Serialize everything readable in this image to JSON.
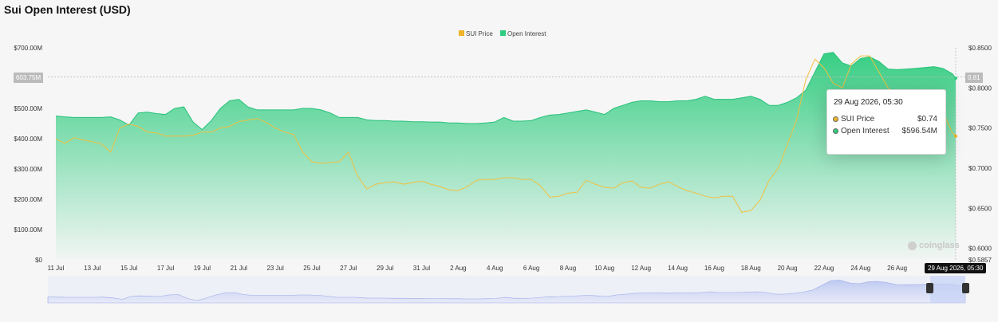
{
  "title": "Sui Open Interest (USD)",
  "legend": [
    {
      "name": "SUI Price",
      "color": "#f0b429"
    },
    {
      "name": "Open Interest",
      "color": "#2ecc7e"
    }
  ],
  "crosshair": {
    "left_label": "603.75M",
    "right_label": "0.81",
    "x_label": "29 Aug 2026, 05:30"
  },
  "tooltip": {
    "date": "29 Aug 2026, 05:30",
    "rows": [
      {
        "label": "SUI Price",
        "value": "$0.74",
        "color": "#f0b429"
      },
      {
        "label": "Open Interest",
        "value": "$596.54M",
        "color": "#2ecc7e"
      }
    ]
  },
  "watermark": "coinglass",
  "chart_data": {
    "type": "area",
    "title": "Sui Open Interest (USD)",
    "x_ticks": [
      "11 Jul",
      "13 Jul",
      "15 Jul",
      "17 Jul",
      "19 Jul",
      "21 Jul",
      "23 Jul",
      "25 Jul",
      "27 Jul",
      "29 Jul",
      "31 Jul",
      "2 Aug",
      "4 Aug",
      "6 Aug",
      "8 Aug",
      "10 Aug",
      "12 Aug",
      "14 Aug",
      "16 Aug",
      "18 Aug",
      "20 Aug",
      "22 Aug",
      "24 Aug",
      "26 Aug"
    ],
    "y_left_ticks": [
      "$700.00M",
      "$600.00M",
      "$500.00M",
      "$400.00M",
      "$300.00M",
      "$200.00M",
      "$100.00M",
      "$0"
    ],
    "y_right_ticks": [
      "$0.8500",
      "$0.8000",
      "$0.7500",
      "$0.7000",
      "$0.6500",
      "$0.6000",
      "$0.5857"
    ],
    "y_left_range": [
      0,
      700
    ],
    "y_right_range": [
      0.5857,
      0.85
    ],
    "days": [
      11,
      11.5,
      12,
      12.5,
      13,
      13.5,
      14,
      14.5,
      15,
      15.5,
      16,
      16.5,
      17,
      17.5,
      18,
      18.5,
      19,
      19.5,
      20,
      20.5,
      21,
      21.5,
      22,
      22.5,
      23,
      23.5,
      24,
      24.5,
      25,
      25.5,
      26,
      26.5,
      27,
      27.5,
      28,
      28.5,
      29,
      29.5,
      30,
      30.5,
      31,
      31.5,
      32,
      32.5,
      33,
      33.5,
      34,
      34.5,
      35,
      35.5,
      36,
      36.5,
      37,
      37.5,
      38,
      38.5,
      39,
      39.5,
      40,
      40.5,
      41,
      41.5,
      42,
      42.5,
      43,
      43.5,
      44,
      44.5,
      45,
      45.5,
      46,
      46.5,
      47,
      47.5,
      48,
      48.5,
      49,
      49.5,
      50,
      50.5,
      51,
      51.5,
      52,
      52.5,
      53,
      53.5,
      54,
      54.5,
      55,
      55.5,
      56,
      56.5,
      57,
      57.5,
      58,
      58.5,
      59,
      59.5,
      60,
      60.2
    ],
    "series": [
      {
        "name": "Open Interest",
        "unit": "USD M",
        "values": [
          475,
          472,
          470,
          470,
          470,
          470,
          472,
          462,
          445,
          485,
          488,
          483,
          480,
          500,
          505,
          455,
          430,
          460,
          500,
          525,
          530,
          505,
          495,
          495,
          495,
          495,
          495,
          500,
          500,
          495,
          485,
          470,
          470,
          470,
          462,
          460,
          460,
          458,
          458,
          456,
          456,
          455,
          455,
          452,
          452,
          450,
          450,
          452,
          455,
          470,
          458,
          458,
          460,
          470,
          478,
          480,
          485,
          490,
          495,
          488,
          480,
          500,
          510,
          520,
          525,
          525,
          522,
          522,
          525,
          525,
          530,
          540,
          530,
          530,
          530,
          535,
          540,
          530,
          510,
          510,
          520,
          535,
          560,
          620,
          680,
          685,
          650,
          640,
          665,
          670,
          655,
          630,
          628,
          630,
          632,
          635,
          638,
          632,
          615,
          600
        ]
      },
      {
        "name": "SUI Price",
        "unit": "USD",
        "values": [
          0.736,
          0.731,
          0.738,
          0.735,
          0.733,
          0.73,
          0.72,
          0.75,
          0.755,
          0.752,
          0.745,
          0.744,
          0.74,
          0.74,
          0.74,
          0.741,
          0.745,
          0.745,
          0.75,
          0.752,
          0.758,
          0.76,
          0.762,
          0.757,
          0.75,
          0.745,
          0.742,
          0.72,
          0.708,
          0.706,
          0.707,
          0.708,
          0.72,
          0.69,
          0.674,
          0.68,
          0.682,
          0.683,
          0.68,
          0.682,
          0.684,
          0.68,
          0.677,
          0.673,
          0.672,
          0.677,
          0.685,
          0.686,
          0.686,
          0.688,
          0.688,
          0.686,
          0.686,
          0.678,
          0.664,
          0.665,
          0.669,
          0.67,
          0.685,
          0.68,
          0.676,
          0.675,
          0.682,
          0.684,
          0.676,
          0.675,
          0.68,
          0.683,
          0.677,
          0.672,
          0.669,
          0.665,
          0.663,
          0.665,
          0.665,
          0.645,
          0.647,
          0.66,
          0.685,
          0.7,
          0.73,
          0.76,
          0.81,
          0.836,
          0.825,
          0.806,
          0.8,
          0.83,
          0.84,
          0.84,
          0.82,
          0.8,
          0.79,
          0.792,
          0.795,
          0.79,
          0.78,
          0.77,
          0.745,
          0.74
        ]
      }
    ]
  }
}
